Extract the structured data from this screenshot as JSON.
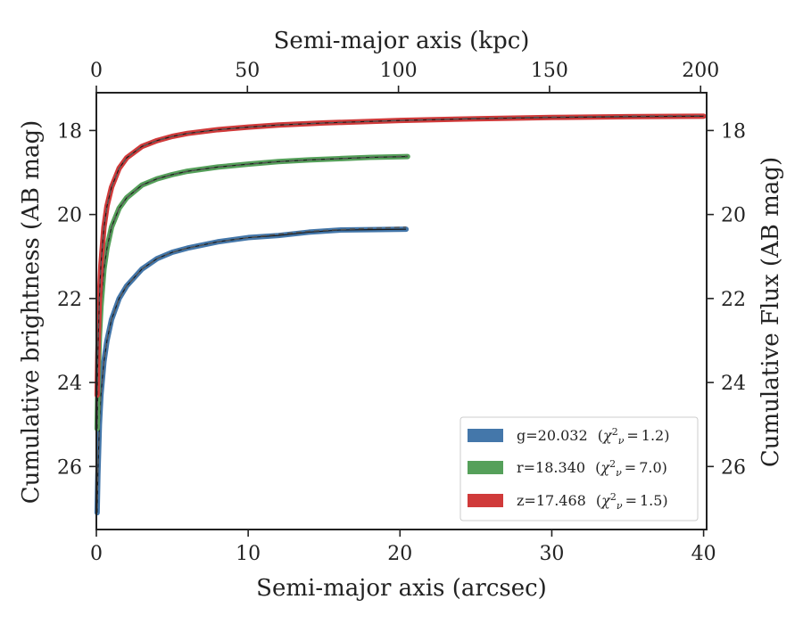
{
  "chart_data": {
    "type": "line",
    "xlabel": "Semi-major axis (arcsec)",
    "x2label": "Semi-major axis (kpc)",
    "ylabel": "Cumulative brightness (AB mag)",
    "y2label": "Cumulative Flux (AB mag)",
    "xlim": [
      0,
      40.2
    ],
    "x2lim": [
      0,
      202
    ],
    "ylim": [
      27.5,
      17.1
    ],
    "y_inverted": true,
    "xticks": [
      "0",
      "10",
      "20",
      "30",
      "40"
    ],
    "x2ticks": [
      "0",
      "50",
      "100",
      "150",
      "200"
    ],
    "yticks": [
      "18",
      "20",
      "22",
      "24",
      "26"
    ],
    "y2ticks": [
      "18",
      "20",
      "22",
      "24",
      "26"
    ],
    "legend_position": "lower-right",
    "grid": false,
    "series": [
      {
        "name": "g=20.032",
        "chi2": "1.2",
        "color": "#4477aa",
        "x": [
          0.05,
          0.1,
          0.2,
          0.3,
          0.5,
          0.7,
          1.0,
          1.5,
          2.0,
          3.0,
          4.0,
          5.0,
          6.0,
          8.0,
          10.0,
          12.0,
          14.0,
          16.0,
          18.0,
          20.4
        ],
        "y": [
          27.1,
          26.2,
          25.0,
          24.3,
          23.5,
          23.0,
          22.5,
          22.0,
          21.7,
          21.3,
          21.05,
          20.9,
          20.8,
          20.65,
          20.55,
          20.5,
          20.42,
          20.37,
          20.36,
          20.35
        ],
        "model_y": [
          27.0,
          26.1,
          25.0,
          24.3,
          23.5,
          23.0,
          22.5,
          22.0,
          21.7,
          21.3,
          21.05,
          20.9,
          20.8,
          20.65,
          20.55,
          20.47,
          20.4,
          20.36,
          20.33,
          20.3
        ]
      },
      {
        "name": "r=18.340",
        "chi2": "7.0",
        "color": "#55a05a",
        "x": [
          0.05,
          0.1,
          0.2,
          0.3,
          0.5,
          0.7,
          1.0,
          1.5,
          2.0,
          3.0,
          4.0,
          5.0,
          6.0,
          8.0,
          10.0,
          12.0,
          14.0,
          16.0,
          18.0,
          20.5
        ],
        "y": [
          25.1,
          24.1,
          22.9,
          22.2,
          21.3,
          20.8,
          20.3,
          19.85,
          19.6,
          19.3,
          19.15,
          19.05,
          18.97,
          18.87,
          18.8,
          18.74,
          18.7,
          18.67,
          18.64,
          18.62
        ],
        "model_y": [
          25.0,
          24.0,
          22.9,
          22.2,
          21.3,
          20.8,
          20.3,
          19.85,
          19.6,
          19.3,
          19.15,
          19.05,
          18.97,
          18.87,
          18.8,
          18.74,
          18.7,
          18.67,
          18.64,
          18.61
        ]
      },
      {
        "name": "z=17.468",
        "chi2": "1.5",
        "color": "#d03a3a",
        "x": [
          0.05,
          0.1,
          0.2,
          0.3,
          0.5,
          0.7,
          1.0,
          1.5,
          2.0,
          3.0,
          4.0,
          5.0,
          6.0,
          8.0,
          10.0,
          12.0,
          15.0,
          20.0,
          25.0,
          30.0,
          35.0,
          40.0
        ],
        "y": [
          24.3,
          23.3,
          22.0,
          21.2,
          20.3,
          19.8,
          19.35,
          18.9,
          18.65,
          18.38,
          18.24,
          18.14,
          18.07,
          17.98,
          17.92,
          17.87,
          17.82,
          17.76,
          17.72,
          17.69,
          17.67,
          17.66
        ],
        "model_y": [
          24.2,
          23.2,
          22.0,
          21.2,
          20.3,
          19.8,
          19.35,
          18.9,
          18.65,
          18.38,
          18.24,
          18.14,
          18.07,
          17.98,
          17.92,
          17.87,
          17.82,
          17.76,
          17.71,
          17.68,
          17.66,
          17.65
        ]
      }
    ]
  },
  "legend": {
    "items": [
      {
        "label": "g=20.032",
        "chi_value": "1.2",
        "color": "#4477aa"
      },
      {
        "label": "r=18.340",
        "chi_value": "7.0",
        "color": "#55a05a"
      },
      {
        "label": "z=17.468",
        "chi_value": "1.5",
        "color": "#d03a3a"
      }
    ]
  }
}
